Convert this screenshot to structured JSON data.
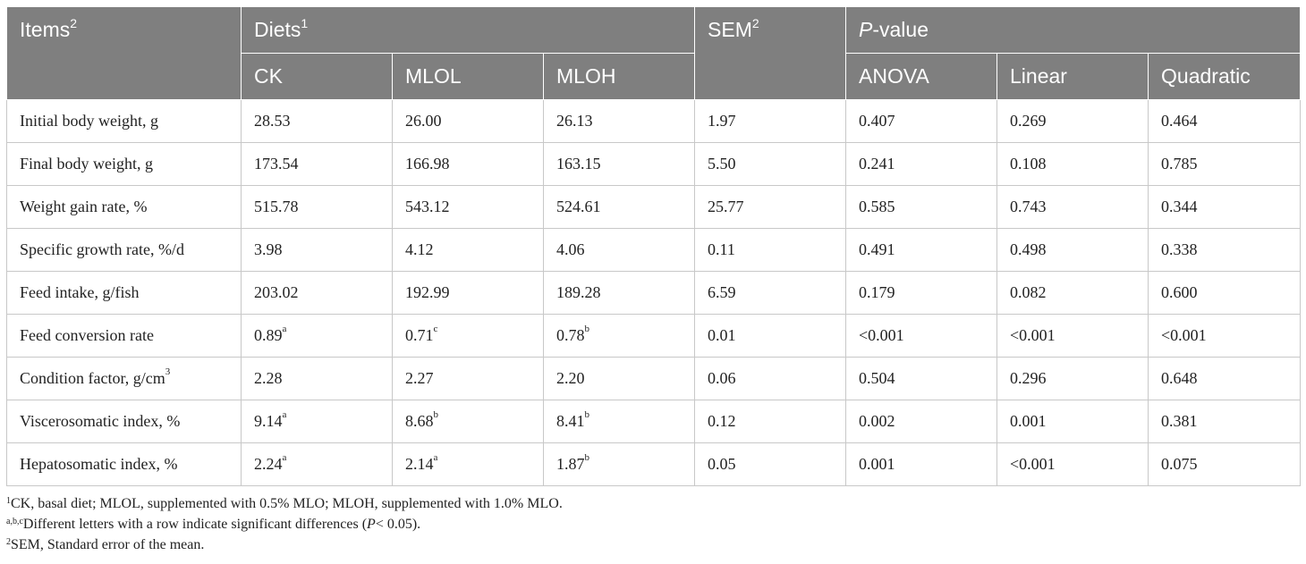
{
  "header": {
    "items": "Items",
    "items_sup": "2",
    "diets": "Diets",
    "diets_sup": "1",
    "sem": "SEM",
    "sem_sup": "2",
    "pvalue_italic": "P",
    "pvalue_rest": "-value",
    "sub": [
      "CK",
      "MLOL",
      "MLOH",
      "ANOVA",
      "Linear",
      "Quadratic"
    ]
  },
  "rows": [
    {
      "item": "Initial body weight, g",
      "item_sup": "",
      "ck": "28.53",
      "ck_sup": "",
      "mlol": "26.00",
      "mlol_sup": "",
      "mloh": "26.13",
      "mloh_sup": "",
      "sem": "1.97",
      "anova": "0.407",
      "linear": "0.269",
      "quadratic": "0.464"
    },
    {
      "item": "Final body weight, g",
      "item_sup": "",
      "ck": "173.54",
      "ck_sup": "",
      "mlol": "166.98",
      "mlol_sup": "",
      "mloh": "163.15",
      "mloh_sup": "",
      "sem": "5.50",
      "anova": "0.241",
      "linear": "0.108",
      "quadratic": "0.785"
    },
    {
      "item": "Weight gain rate, %",
      "item_sup": "",
      "ck": "515.78",
      "ck_sup": "",
      "mlol": "543.12",
      "mlol_sup": "",
      "mloh": "524.61",
      "mloh_sup": "",
      "sem": "25.77",
      "anova": "0.585",
      "linear": "0.743",
      "quadratic": "0.344"
    },
    {
      "item": "Specific growth rate, %/d",
      "item_sup": "",
      "ck": "3.98",
      "ck_sup": "",
      "mlol": "4.12",
      "mlol_sup": "",
      "mloh": "4.06",
      "mloh_sup": "",
      "sem": "0.11",
      "anova": "0.491",
      "linear": "0.498",
      "quadratic": "0.338"
    },
    {
      "item": "Feed intake, g/fish",
      "item_sup": "",
      "ck": "203.02",
      "ck_sup": "",
      "mlol": "192.99",
      "mlol_sup": "",
      "mloh": "189.28",
      "mloh_sup": "",
      "sem": "6.59",
      "anova": "0.179",
      "linear": "0.082",
      "quadratic": "0.600"
    },
    {
      "item": "Feed conversion rate",
      "item_sup": "",
      "ck": "0.89",
      "ck_sup": "a",
      "mlol": "0.71",
      "mlol_sup": "c",
      "mloh": "0.78",
      "mloh_sup": "b",
      "sem": "0.01",
      "anova": "<0.001",
      "linear": "<0.001",
      "quadratic": "<0.001"
    },
    {
      "item": "Condition factor, g/cm",
      "item_sup": "3",
      "ck": "2.28",
      "ck_sup": "",
      "mlol": "2.27",
      "mlol_sup": "",
      "mloh": "2.20",
      "mloh_sup": "",
      "sem": "0.06",
      "anova": "0.504",
      "linear": "0.296",
      "quadratic": "0.648"
    },
    {
      "item": "Viscerosomatic index, %",
      "item_sup": "",
      "ck": "9.14",
      "ck_sup": "a",
      "mlol": "8.68",
      "mlol_sup": "b",
      "mloh": "8.41",
      "mloh_sup": "b",
      "sem": "0.12",
      "anova": "0.002",
      "linear": "0.001",
      "quadratic": "0.381"
    },
    {
      "item": "Hepatosomatic index, %",
      "item_sup": "",
      "ck": "2.24",
      "ck_sup": "a",
      "mlol": "2.14",
      "mlol_sup": "a",
      "mloh": "1.87",
      "mloh_sup": "b",
      "sem": "0.05",
      "anova": "0.001",
      "linear": "<0.001",
      "quadratic": "0.075"
    }
  ],
  "notes": {
    "n1_sup": "1",
    "n1": "CK, basal diet; MLOL, supplemented with 0.5% MLO; MLOH, supplemented with 1.0% MLO.",
    "n2_sup": "a,b,c",
    "n2_a": "Different letters with a row indicate significant differences (",
    "n2_p": "P",
    "n2_b": "< 0.05).",
    "n3_sup": "2",
    "n3": "SEM, Standard error of the mean."
  },
  "colors": {
    "header_bg": "#7f7f7f",
    "header_text": "#ffffff",
    "grid": "#c8c8c8"
  }
}
